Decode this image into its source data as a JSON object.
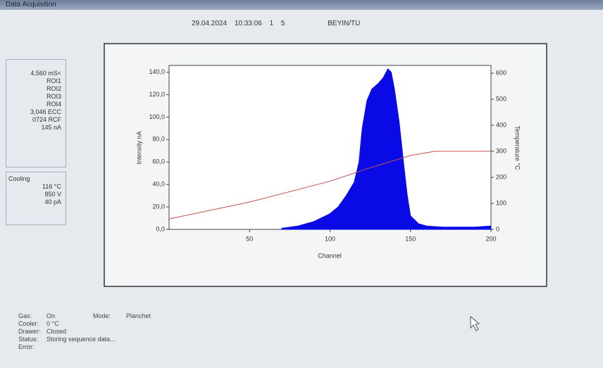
{
  "window": {
    "title": "Data Acquisition"
  },
  "header": {
    "date": "29.04.2024",
    "time": "10:33:06",
    "run": "1",
    "sample": "5",
    "operator": "BEYIN/TU"
  },
  "readings": [
    "4,560 mS<",
    "ROI1",
    "ROI2",
    "ROI3",
    "ROI4",
    "3,046 ECC",
    "0724 RCF",
    "145 nA"
  ],
  "cooling": {
    "title": "Cooling",
    "rows": [
      "116 °C",
      "850 V",
      "40 pA"
    ]
  },
  "mode": {
    "label": "Mode:",
    "value": "Planchet"
  },
  "status": [
    {
      "label": "Gas:",
      "value": "On"
    },
    {
      "label": "Cooler:",
      "value": "0 °C"
    },
    {
      "label": "Drawer:",
      "value": "Closed"
    },
    {
      "label": "Status:",
      "value": "Storing sequence data..."
    },
    {
      "label": "Error:"
    }
  ],
  "chart_data": {
    "type": "area",
    "xlabel": "Channel",
    "ylabel": "Intensity nA",
    "y2label": "Temperature °C",
    "xlim": [
      0,
      200
    ],
    "xticks": [
      50,
      100,
      150,
      200
    ],
    "ylim": [
      0,
      146
    ],
    "yticks": [
      {
        "value": 0,
        "label": "0,0"
      },
      {
        "value": 20,
        "label": "20,0"
      },
      {
        "value": 40,
        "label": "40,0"
      },
      {
        "value": 60,
        "label": "60,0"
      },
      {
        "value": 80,
        "label": "80,0"
      },
      {
        "value": 100,
        "label": "100,0"
      },
      {
        "value": 120,
        "label": "120,0"
      },
      {
        "value": 140,
        "label": "140,0"
      }
    ],
    "y2lim": [
      0,
      630
    ],
    "y2ticks": [
      0,
      100,
      200,
      300,
      400,
      500,
      600
    ],
    "series": [
      {
        "type": "area",
        "color": "#0a0ae6",
        "x": [
          70,
          80,
          90,
          100,
          105,
          110,
          115,
          118,
          120,
          123,
          126,
          130,
          133,
          136,
          138,
          140,
          143,
          146,
          148,
          150,
          155,
          160,
          170,
          180,
          190,
          200
        ],
        "values": [
          1,
          3,
          7,
          14,
          20,
          30,
          42,
          60,
          90,
          115,
          125,
          130,
          135,
          143,
          140,
          125,
          95,
          55,
          30,
          12,
          5,
          3,
          2,
          2,
          2,
          3
        ]
      },
      {
        "type": "line",
        "color": "#c0504d",
        "axis": "y2",
        "x": [
          0,
          50,
          100,
          125,
          150,
          165,
          200
        ],
        "values": [
          40,
          105,
          185,
          237,
          284,
          300,
          300
        ]
      }
    ]
  }
}
